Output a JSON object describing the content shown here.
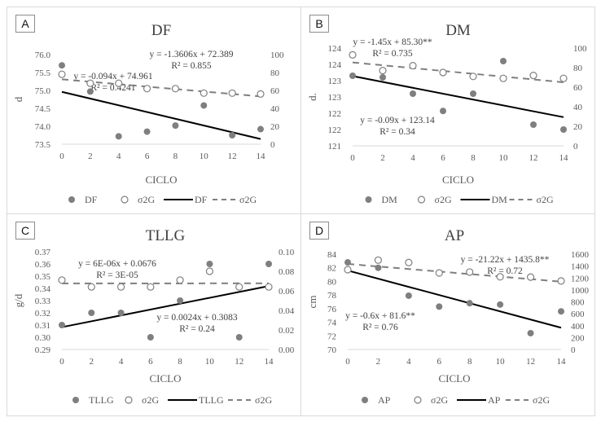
{
  "chart_data": [
    {
      "type": "scatter",
      "panel_label": "A",
      "title": "DF",
      "xlabel": "CICLO",
      "ylabel": "d",
      "y2label": "",
      "x": [
        0,
        2,
        4,
        6,
        8,
        10,
        12,
        14
      ],
      "xticks": [
        "0",
        "2",
        "4",
        "6",
        "8",
        "10",
        "12",
        "14"
      ],
      "xlim": [
        0,
        14
      ],
      "ylim": [
        73.5,
        76.0
      ],
      "yticks": [
        "73.5",
        "74.0",
        "74.5",
        "75.0",
        "75.5",
        "76.0"
      ],
      "y2lim": [
        0,
        100
      ],
      "y2ticks": [
        "0",
        "20",
        "40",
        "60",
        "80",
        "100"
      ],
      "series": [
        {
          "name": "DF",
          "axis": "left",
          "marker": "filled",
          "values": [
            75.7,
            74.97,
            73.72,
            73.85,
            74.02,
            74.58,
            73.75,
            73.92
          ]
        },
        {
          "name": "σ2G",
          "axis": "right",
          "marker": "open",
          "values": [
            78,
            68,
            68,
            62,
            62,
            57,
            57,
            56
          ]
        }
      ],
      "trendlines": [
        {
          "name": "DF",
          "axis": "left",
          "style": "solid",
          "slope": -0.094,
          "intercept": 74.961,
          "equation": "y = -0.094x + 74.961",
          "r2": "R² = 0.4241"
        },
        {
          "name": "σ2G",
          "axis": "right",
          "style": "dashed",
          "slope": -1.3606,
          "intercept": 72.389,
          "equation": "y = -1.3606x + 72.389",
          "r2": "R² = 0.855"
        }
      ],
      "legend": [
        "DF",
        "σ2G",
        "DF",
        "σ2G"
      ],
      "legend_position": "bottom"
    },
    {
      "type": "scatter",
      "panel_label": "B",
      "title": "DM",
      "xlabel": "CICLO",
      "ylabel": "d.",
      "y2label": "",
      "x": [
        0,
        2,
        4,
        6,
        8,
        10,
        12,
        14
      ],
      "xticks": [
        "0",
        "2",
        "4",
        "6",
        "8",
        "10",
        "12",
        "14"
      ],
      "xlim": [
        0,
        14
      ],
      "ylim": [
        121,
        124
      ],
      "yticks": [
        "121",
        "122",
        "122",
        "123",
        "123",
        "124",
        "124"
      ],
      "y2lim": [
        0,
        100
      ],
      "y2ticks": [
        "0",
        "20",
        "40",
        "60",
        "80",
        "100"
      ],
      "series": [
        {
          "name": "DM",
          "axis": "left",
          "marker": "filled",
          "values": [
            123.15,
            123.1,
            122.6,
            122.07,
            122.6,
            123.6,
            121.65,
            121.5
          ]
        },
        {
          "name": "σ2G",
          "axis": "right",
          "marker": "open",
          "values": [
            93,
            77,
            82,
            75,
            71,
            69,
            72,
            69
          ]
        }
      ],
      "trendlines": [
        {
          "name": "DM",
          "axis": "left",
          "style": "solid",
          "slope": -0.09,
          "intercept": 123.14,
          "equation": "y = -0.09x + 123.14",
          "r2": "R² = 0.34"
        },
        {
          "name": "σ2G",
          "axis": "right",
          "style": "dashed",
          "slope": -1.45,
          "intercept": 85.3,
          "equation": "y = -1.45x + 85.30**",
          "r2": "R² = 0.735"
        }
      ],
      "legend": [
        "DM",
        "σ2G",
        "DM",
        "σ2G"
      ],
      "legend_position": "bottom"
    },
    {
      "type": "scatter",
      "panel_label": "C",
      "title": "TLLG",
      "xlabel": "CICLO",
      "ylabel": "g/d",
      "y2label": "",
      "x": [
        0,
        2,
        4,
        6,
        8,
        10,
        12,
        14
      ],
      "xticks": [
        "0",
        "2",
        "4",
        "6",
        "8",
        "10",
        "12",
        "14"
      ],
      "xlim": [
        0,
        14
      ],
      "ylim": [
        0.29,
        0.37
      ],
      "yticks": [
        "0.29",
        "0.30",
        "0.31",
        "0.32",
        "0.33",
        "0.34",
        "0.35",
        "0.36",
        "0.37"
      ],
      "y2lim": [
        0,
        0.1
      ],
      "y2ticks": [
        "0.00",
        "0.02",
        "0.04",
        "0.06",
        "0.08",
        "0.10"
      ],
      "series": [
        {
          "name": "TLLG",
          "axis": "left",
          "marker": "filled",
          "values": [
            0.31,
            0.32,
            0.32,
            0.3,
            0.33,
            0.36,
            0.3,
            0.36
          ]
        },
        {
          "name": "σ2G",
          "axis": "right",
          "marker": "open",
          "values": [
            0.071,
            0.064,
            0.064,
            0.064,
            0.071,
            0.08,
            0.064,
            0.064
          ]
        }
      ],
      "trendlines": [
        {
          "name": "TLLG",
          "axis": "left",
          "style": "solid",
          "slope": 0.0024,
          "intercept": 0.3083,
          "equation": "y = 0.0024x + 0.3083",
          "r2": "R² = 0.24"
        },
        {
          "name": "σ2G",
          "axis": "right",
          "style": "dashed",
          "slope": 6e-06,
          "intercept": 0.0676,
          "equation": "y = 6E-06x + 0.0676",
          "r2": "R² = 3E-05"
        }
      ],
      "legend": [
        "TLLG",
        "σ2G",
        "TLLG",
        "σ2G"
      ],
      "legend_position": "bottom"
    },
    {
      "type": "scatter",
      "panel_label": "D",
      "title": "AP",
      "xlabel": "CICLO",
      "ylabel": "cm",
      "y2label": "",
      "x": [
        0,
        2,
        4,
        6,
        8,
        10,
        12,
        14
      ],
      "xticks": [
        "0",
        "2",
        "4",
        "6",
        "8",
        "10",
        "12",
        "14"
      ],
      "xlim": [
        0,
        14
      ],
      "ylim": [
        70,
        84
      ],
      "yticks": [
        "70",
        "72",
        "74",
        "76",
        "78",
        "80",
        "82",
        "84"
      ],
      "y2lim": [
        0,
        1600
      ],
      "y2ticks": [
        "0",
        "200",
        "400",
        "600",
        "800",
        "1000",
        "1200",
        "1400",
        "1600"
      ],
      "series": [
        {
          "name": "AP",
          "axis": "left",
          "marker": "filled",
          "values": [
            82.8,
            82.0,
            77.9,
            76.3,
            76.8,
            76.6,
            72.4,
            75.6
          ]
        },
        {
          "name": "σ2G",
          "axis": "right",
          "marker": "open",
          "values": [
            1340,
            1500,
            1460,
            1285,
            1300,
            1220,
            1215,
            1150
          ]
        }
      ],
      "trendlines": [
        {
          "name": "AP",
          "axis": "left",
          "style": "solid",
          "slope": -0.6,
          "intercept": 81.6,
          "equation": "y = -0.6x + 81.6**",
          "r2": "R² = 0.76"
        },
        {
          "name": "σ2G",
          "axis": "right",
          "style": "dashed",
          "slope": -21.22,
          "intercept": 1435.8,
          "equation": "y = -21.22x + 1435.8**",
          "r2": "R² = 0.72"
        }
      ],
      "legend": [
        "AP",
        "σ2G",
        "AP",
        "σ2G"
      ],
      "legend_position": "bottom"
    }
  ]
}
